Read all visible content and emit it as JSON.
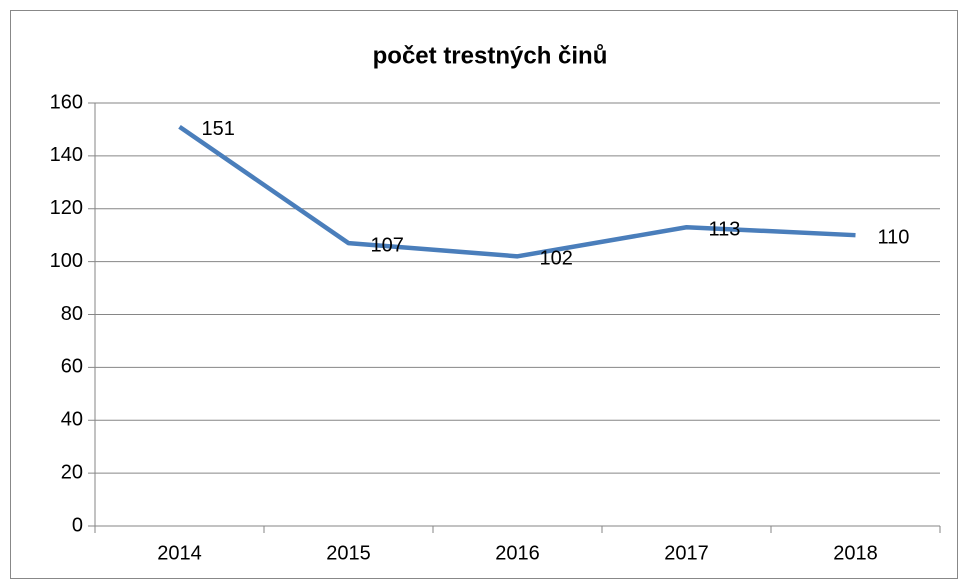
{
  "chart_data": {
    "type": "line",
    "title": "počet trestných činů",
    "categories": [
      "2014",
      "2015",
      "2016",
      "2017",
      "2018"
    ],
    "values": [
      151,
      107,
      102,
      113,
      110
    ],
    "color": "#4a7ebb",
    "ylim": [
      0,
      160
    ],
    "yticks": [
      0,
      20,
      40,
      60,
      80,
      100,
      120,
      140,
      160
    ],
    "grid": true
  }
}
